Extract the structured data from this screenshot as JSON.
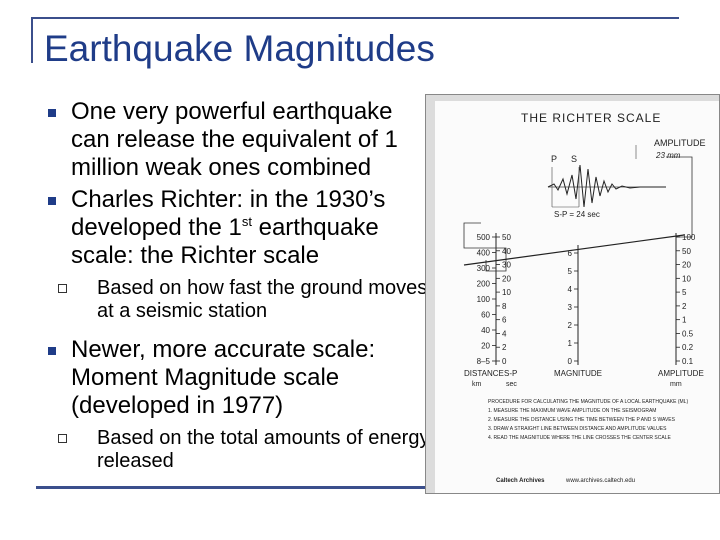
{
  "slide": {
    "title": "Earthquake Magnitudes",
    "bullets": [
      {
        "text": "One very powerful earthquake can release the equivalent of 1 million weak ones combined"
      },
      {
        "text_before": "Charles Richter: in the 1930’s developed the 1",
        "superscript": "st",
        "text_after": " earthquake scale: the Richter scale"
      },
      {
        "text": "Newer, more accurate scale: Moment Magnitude scale (developed in 1977)"
      }
    ],
    "subbullets": [
      {
        "text": "Based on how fast the ground moves at a seismic station"
      },
      {
        "text": "Based on the total amounts of energy released"
      }
    ]
  },
  "figure": {
    "heading": "THE RICHTER SCALE",
    "amplitude_label": "AMPLITUDE",
    "amplitude_value": "23 mm",
    "sp_annotation": "S-P = 24 sec",
    "p_label": "P",
    "s_label": "S",
    "distance_ticks": [
      "500",
      "400",
      "300",
      "200",
      "100",
      "60",
      "40",
      "20",
      "8–5"
    ],
    "sp_ticks": [
      "50",
      "40",
      "30",
      "20",
      "10",
      "8",
      "6",
      "4",
      "2",
      "0"
    ],
    "magnitude_ticks": [
      "6",
      "5",
      "4",
      "3",
      "2",
      "1",
      "0"
    ],
    "amplitude_ticks": [
      "100",
      "50",
      "20",
      "10",
      "5",
      "2",
      "1",
      "0.5",
      "0.2",
      "0.1"
    ],
    "axis_labels": {
      "distance": "DISTANCE",
      "distance_unit": "km",
      "sp": "S-P",
      "sp_unit": "sec",
      "magnitude": "MAGNITUDE",
      "amplitude": "AMPLITUDE",
      "amplitude_unit": "mm"
    },
    "caption_lines": [
      "PROCEDURE FOR CALCULATING THE MAGNITUDE OF A LOCAL EARTHQUAKE (ML)",
      "1. MEASURE THE MAXIMUM WAVE AMPLITUDE ON THE SEISMOGRAM",
      "2. MEASURE THE DISTANCE USING THE TIME BETWEEN THE P AND S WAVES",
      "3. DRAW A STRAIGHT LINE BETWEEN DISTANCE AND AMPLITUDE VALUES",
      "4. READ THE MAGNITUDE WHERE THE LINE CROSSES THE CENTER SCALE"
    ],
    "credit_left": "Caltech Archives",
    "credit_right": "www.archives.caltech.edu"
  }
}
